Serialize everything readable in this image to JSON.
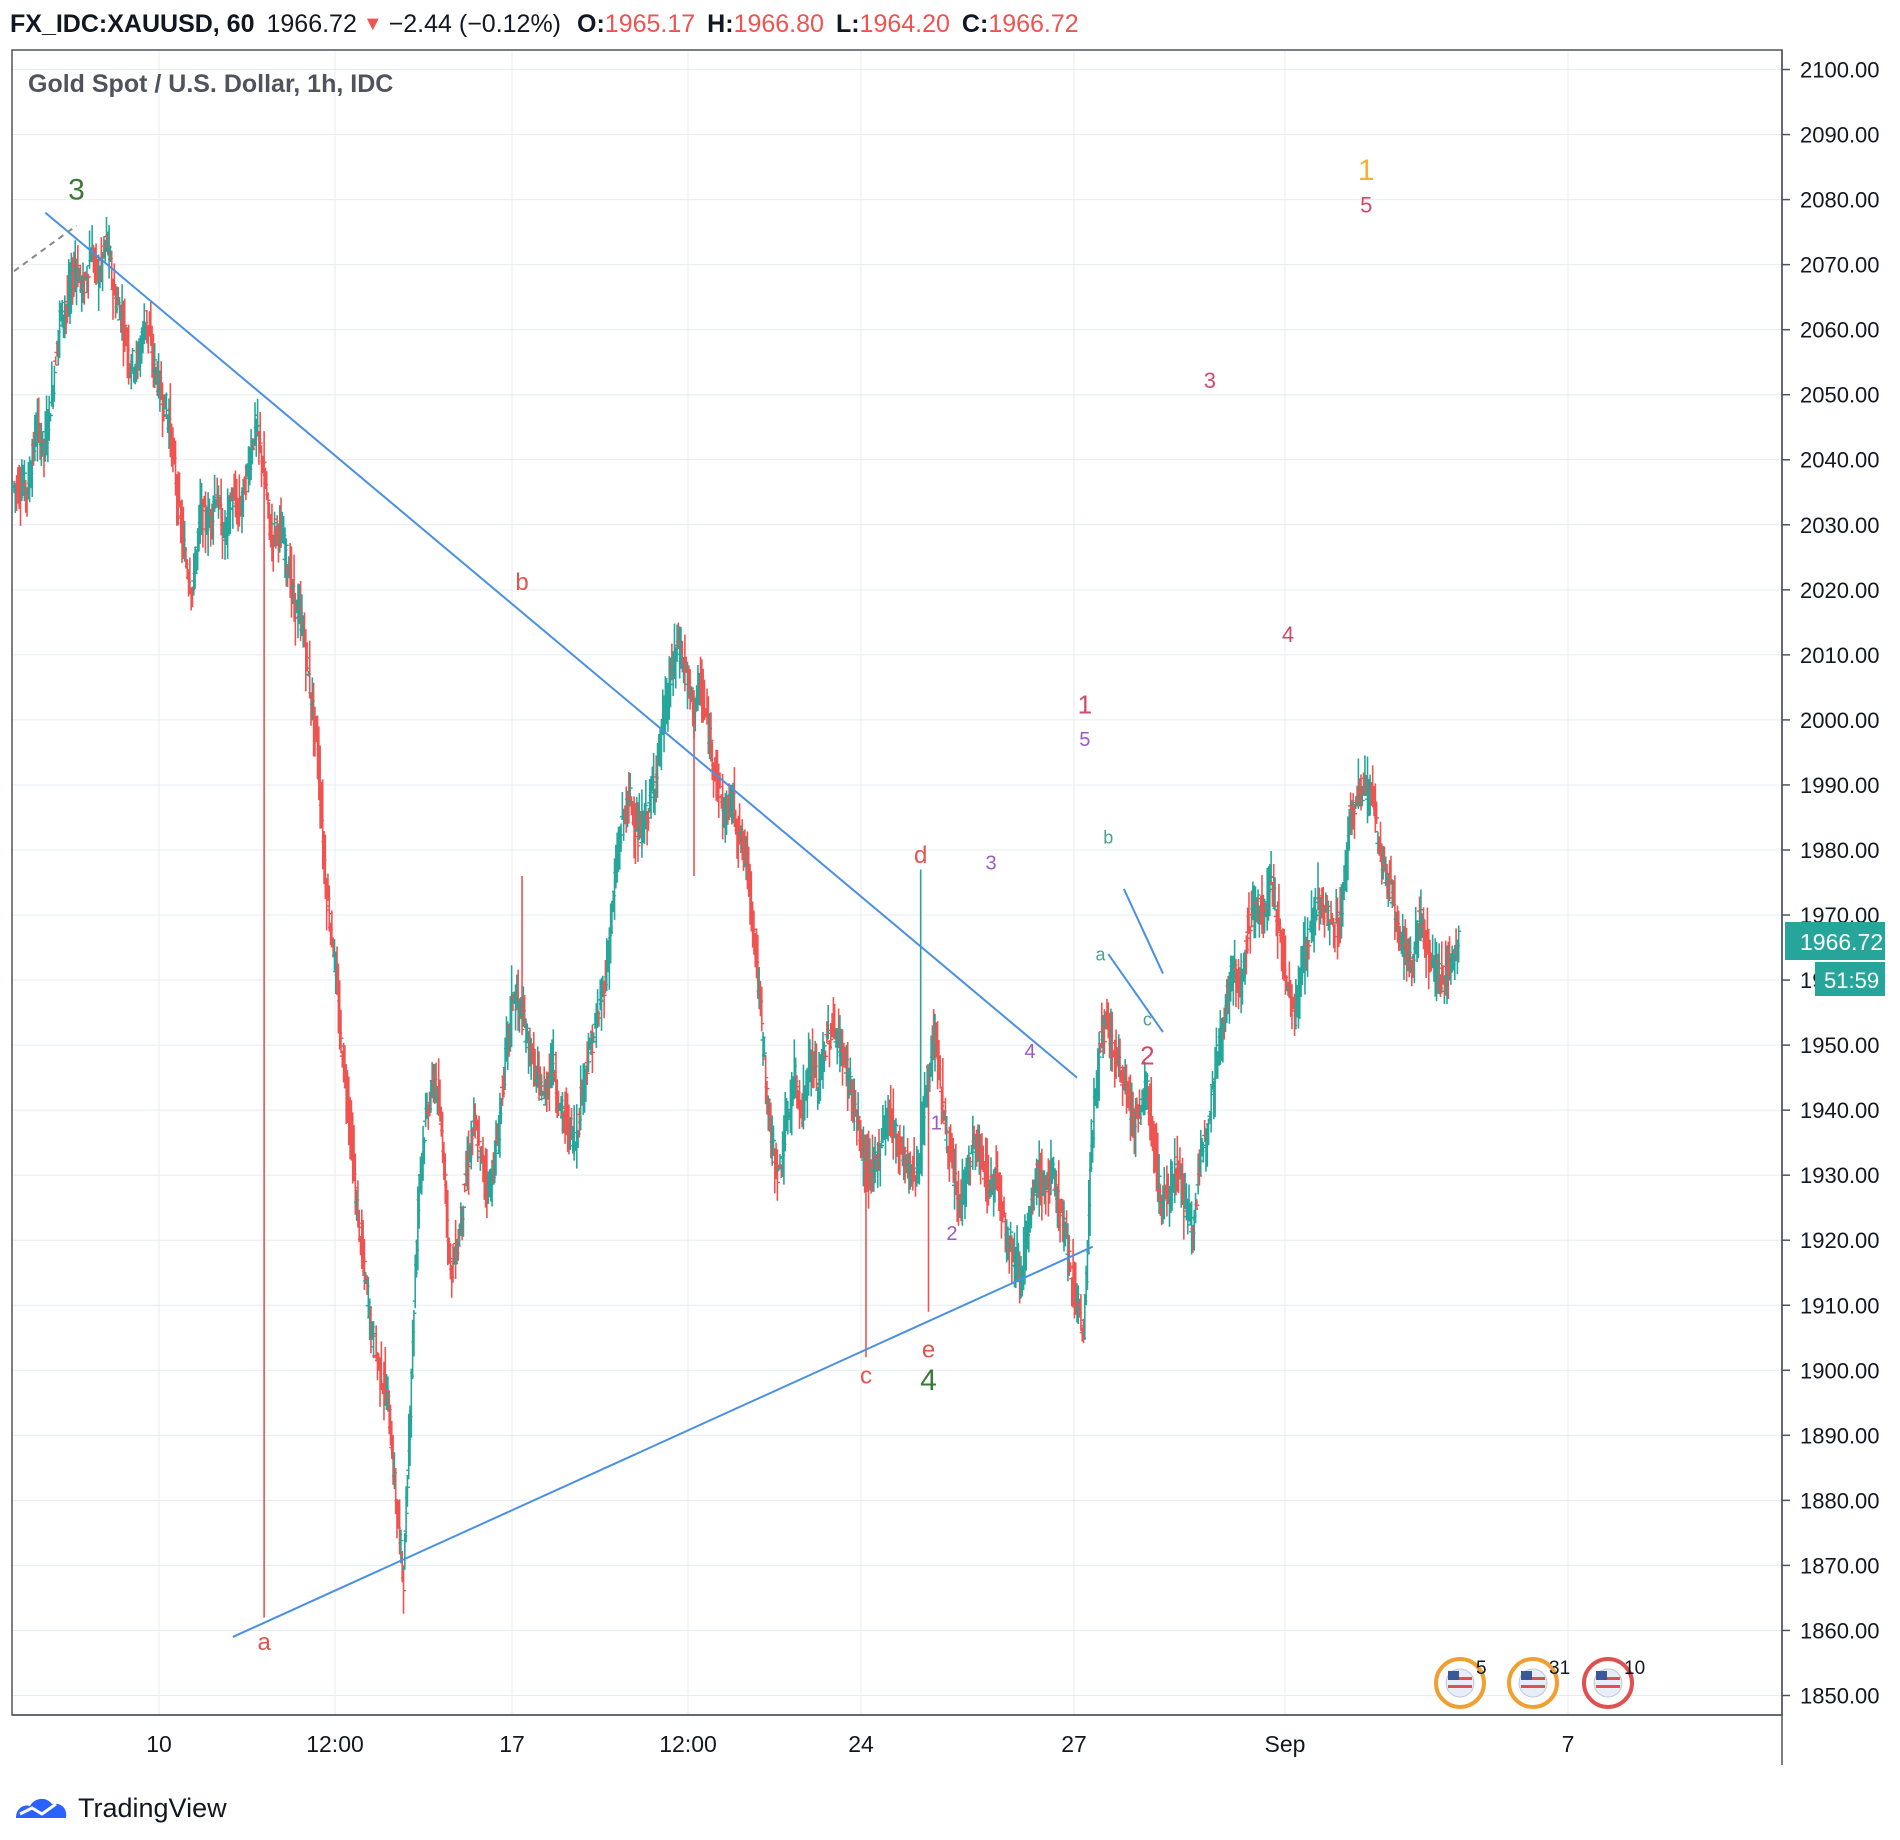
{
  "header": {
    "symbol": "FX_IDC:XAUUSD, 60",
    "price": "1966.72",
    "change": "−2.44 (−0.12%)",
    "open_label": "O:",
    "open": "1965.17",
    "high_label": "H:",
    "high": "1966.80",
    "low_label": "L:",
    "low": "1964.20",
    "close_label": "C:",
    "close": "1966.72"
  },
  "footer": {
    "brand": "TradingView"
  },
  "chart_data": {
    "type": "ohlc",
    "title": "Gold Spot / U.S. Dollar, 1h, IDC",
    "y_ticks": [
      2100,
      2090,
      2080,
      2070,
      2060,
      2050,
      2040,
      2030,
      2020,
      2010,
      2000,
      1990,
      1980,
      1970,
      1960,
      1950,
      1940,
      1930,
      1920,
      1910,
      1900,
      1890,
      1880,
      1870,
      1860,
      1850
    ],
    "y_tick_labels": [
      "2100.00",
      "2090.00",
      "2080.00",
      "2070.00",
      "2060.00",
      "2050.00",
      "2040.00",
      "2030.00",
      "2020.00",
      "2010.00",
      "2000.00",
      "1990.00",
      "1980.00",
      "1970.00",
      "1960.00",
      "1950.00",
      "1940.00",
      "1930.00",
      "1920.00",
      "1910.00",
      "1900.00",
      "1890.00",
      "1880.00",
      "1870.00",
      "1860.00",
      "1850.00"
    ],
    "ylim": [
      1847,
      2103
    ],
    "x_ticks": [
      "10",
      "12:00",
      "17",
      "12:00",
      "24",
      "27",
      "Sep",
      "7"
    ],
    "last_price": "1966.72",
    "countdown": "51:59",
    "price_path": [
      [
        0,
        2036
      ],
      [
        1,
        2036
      ],
      [
        2,
        2036
      ],
      [
        3,
        2045
      ],
      [
        4,
        2042
      ],
      [
        5,
        2050
      ],
      [
        6,
        2062
      ],
      [
        7,
        2064
      ],
      [
        8,
        2070
      ],
      [
        9,
        2066
      ],
      [
        10,
        2072
      ],
      [
        11,
        2068
      ],
      [
        12,
        2074
      ],
      [
        13,
        2065
      ],
      [
        14,
        2062
      ],
      [
        15,
        2055
      ],
      [
        16,
        2055
      ],
      [
        17,
        2062
      ],
      [
        18,
        2055
      ],
      [
        19,
        2050
      ],
      [
        20,
        2046
      ],
      [
        21,
        2035
      ],
      [
        22,
        2025
      ],
      [
        23,
        2020
      ],
      [
        24,
        2032
      ],
      [
        25,
        2030
      ],
      [
        26,
        2035
      ],
      [
        27,
        2028
      ],
      [
        28,
        2034
      ],
      [
        29,
        2032
      ],
      [
        30,
        2038
      ],
      [
        31,
        2045
      ],
      [
        32,
        2040
      ],
      [
        33,
        2028
      ],
      [
        34,
        2030
      ],
      [
        35,
        2025
      ],
      [
        36,
        2018
      ],
      [
        37,
        2015
      ],
      [
        38,
        2005
      ],
      [
        39,
        1995
      ],
      [
        40,
        1975
      ],
      [
        41,
        1965
      ],
      [
        42,
        1950
      ],
      [
        43,
        1940
      ],
      [
        44,
        1925
      ],
      [
        45,
        1915
      ],
      [
        46,
        1905
      ],
      [
        47,
        1900
      ],
      [
        48,
        1895
      ],
      [
        49,
        1880
      ],
      [
        50,
        1868
      ],
      [
        51,
        1900
      ],
      [
        52,
        1930
      ],
      [
        53,
        1940
      ],
      [
        54,
        1945
      ],
      [
        55,
        1935
      ],
      [
        56,
        1915
      ],
      [
        57,
        1920
      ],
      [
        58,
        1930
      ],
      [
        59,
        1938
      ],
      [
        60,
        1932
      ],
      [
        61,
        1928
      ],
      [
        62,
        1935
      ],
      [
        63,
        1948
      ],
      [
        64,
        1958
      ],
      [
        65,
        1955
      ],
      [
        66,
        1950
      ],
      [
        67,
        1945
      ],
      [
        68,
        1942
      ],
      [
        69,
        1948
      ],
      [
        70,
        1940
      ],
      [
        71,
        1938
      ],
      [
        72,
        1935
      ],
      [
        73,
        1945
      ],
      [
        74,
        1950
      ],
      [
        75,
        1955
      ],
      [
        76,
        1962
      ],
      [
        77,
        1975
      ],
      [
        78,
        1985
      ],
      [
        79,
        1988
      ],
      [
        80,
        1982
      ],
      [
        81,
        1985
      ],
      [
        82,
        1990
      ],
      [
        83,
        1998
      ],
      [
        84,
        2005
      ],
      [
        85,
        2012
      ],
      [
        86,
        2008
      ],
      [
        87,
        2002
      ],
      [
        88,
        2005
      ],
      [
        89,
        1998
      ],
      [
        90,
        1992
      ],
      [
        91,
        1985
      ],
      [
        92,
        1988
      ],
      [
        93,
        1982
      ],
      [
        94,
        1978
      ],
      [
        95,
        1965
      ],
      [
        96,
        1950
      ],
      [
        97,
        1935
      ],
      [
        98,
        1930
      ],
      [
        99,
        1938
      ],
      [
        100,
        1945
      ],
      [
        101,
        1940
      ],
      [
        102,
        1948
      ],
      [
        103,
        1944
      ],
      [
        104,
        1950
      ],
      [
        105,
        1953
      ],
      [
        106,
        1949
      ],
      [
        107,
        1945
      ],
      [
        108,
        1938
      ],
      [
        109,
        1932
      ],
      [
        110,
        1930
      ],
      [
        111,
        1935
      ],
      [
        112,
        1940
      ],
      [
        113,
        1936
      ],
      [
        114,
        1933
      ],
      [
        115,
        1930
      ],
      [
        116,
        1932
      ],
      [
        117,
        1945
      ],
      [
        118,
        1952
      ],
      [
        119,
        1940
      ],
      [
        120,
        1932
      ],
      [
        121,
        1925
      ],
      [
        122,
        1930
      ],
      [
        123,
        1935
      ],
      [
        124,
        1932
      ],
      [
        125,
        1928
      ],
      [
        126,
        1930
      ],
      [
        127,
        1922
      ],
      [
        128,
        1918
      ],
      [
        129,
        1915
      ],
      [
        130,
        1922
      ],
      [
        131,
        1930
      ],
      [
        132,
        1928
      ],
      [
        133,
        1930
      ],
      [
        134,
        1925
      ],
      [
        135,
        1918
      ],
      [
        136,
        1912
      ],
      [
        137,
        1905
      ],
      [
        138,
        1935
      ],
      [
        139,
        1950
      ],
      [
        140,
        1953
      ],
      [
        141,
        1948
      ],
      [
        142,
        1945
      ],
      [
        143,
        1940
      ],
      [
        144,
        1938
      ],
      [
        145,
        1944
      ],
      [
        146,
        1935
      ],
      [
        147,
        1925
      ],
      [
        148,
        1928
      ],
      [
        149,
        1932
      ],
      [
        150,
        1925
      ],
      [
        151,
        1922
      ],
      [
        152,
        1932
      ],
      [
        153,
        1940
      ],
      [
        154,
        1948
      ],
      [
        155,
        1955
      ],
      [
        156,
        1962
      ],
      [
        157,
        1958
      ],
      [
        158,
        1968
      ],
      [
        159,
        1972
      ],
      [
        160,
        1970
      ],
      [
        161,
        1975
      ],
      [
        162,
        1968
      ],
      [
        163,
        1960
      ],
      [
        164,
        1955
      ],
      [
        165,
        1962
      ],
      [
        166,
        1968
      ],
      [
        167,
        1972
      ],
      [
        168,
        1970
      ],
      [
        169,
        1968
      ],
      [
        170,
        1970
      ],
      [
        171,
        1985
      ],
      [
        172,
        1988
      ],
      [
        173,
        1990
      ],
      [
        174,
        1988
      ],
      [
        175,
        1978
      ],
      [
        176,
        1975
      ],
      [
        177,
        1970
      ],
      [
        178,
        1965
      ],
      [
        179,
        1962
      ],
      [
        180,
        1970
      ],
      [
        181,
        1965
      ],
      [
        182,
        1962
      ],
      [
        183,
        1960
      ],
      [
        184,
        1962
      ],
      [
        185,
        1967
      ]
    ],
    "trendlines": [
      {
        "from": [
          4,
          2078
        ],
        "to": [
          136,
          1945
        ]
      },
      {
        "from": [
          28,
          1859
        ],
        "to": [
          138,
          1919
        ]
      },
      {
        "from": [
          140,
          1964
        ],
        "to": [
          147,
          1952
        ]
      },
      {
        "from": [
          142,
          1974
        ],
        "to": [
          147,
          1961
        ]
      },
      {
        "from": [
          0,
          2069
        ],
        "to": [
          8,
          2076
        ],
        "dashed": true
      }
    ],
    "wave_labels": [
      {
        "text": "3",
        "color": "#3a7a36",
        "bar": 8,
        "price": 2080,
        "size": 30
      },
      {
        "text": "a",
        "color": "#e5534b",
        "bar": 32,
        "price": 1857,
        "size": 24
      },
      {
        "text": "b",
        "color": "#e5534b",
        "bar": 65,
        "price": 2020,
        "size": 24
      },
      {
        "text": "c",
        "color": "#e5534b",
        "bar": 109,
        "price": 1898,
        "size": 24
      },
      {
        "text": "d",
        "color": "#e5534b",
        "bar": 116,
        "price": 1978,
        "size": 24
      },
      {
        "text": "e",
        "color": "#e5534b",
        "bar": 117,
        "price": 1902,
        "size": 24
      },
      {
        "text": "4",
        "color": "#3a7a36",
        "bar": 117,
        "price": 1897,
        "size": 30
      },
      {
        "text": "1",
        "color": "#9b59c4",
        "bar": 118,
        "price": 1937,
        "size": 20
      },
      {
        "text": "2",
        "color": "#9b59c4",
        "bar": 120,
        "price": 1920,
        "size": 20
      },
      {
        "text": "3",
        "color": "#9b59c4",
        "bar": 125,
        "price": 1977,
        "size": 20
      },
      {
        "text": "4",
        "color": "#9b59c4",
        "bar": 130,
        "price": 1948,
        "size": 20
      },
      {
        "text": "1",
        "color": "#d2496a",
        "bar": 137,
        "price": 2001,
        "size": 26
      },
      {
        "text": "5",
        "color": "#9b59c4",
        "bar": 137,
        "price": 1996,
        "size": 20
      },
      {
        "text": "b",
        "color": "#4aa28f",
        "bar": 140,
        "price": 1981,
        "size": 18
      },
      {
        "text": "a",
        "color": "#4aa28f",
        "bar": 139,
        "price": 1963,
        "size": 18
      },
      {
        "text": "c",
        "color": "#4aa28f",
        "bar": 145,
        "price": 1953,
        "size": 18
      },
      {
        "text": "2",
        "color": "#d2496a",
        "bar": 145,
        "price": 1947,
        "size": 26
      },
      {
        "text": "3",
        "color": "#d2496a",
        "bar": 153,
        "price": 2051,
        "size": 22
      },
      {
        "text": "4",
        "color": "#d2496a",
        "bar": 163,
        "price": 2012,
        "size": 22
      },
      {
        "text": "1",
        "color": "#f3b23a",
        "bar": 173,
        "price": 2083,
        "size": 30
      },
      {
        "text": "5",
        "color": "#d2496a",
        "bar": 173,
        "price": 2078,
        "size": 22
      }
    ],
    "events": [
      {
        "label": "5",
        "color": "#f0a030"
      },
      {
        "label": "31",
        "color": "#f0a030"
      },
      {
        "label": "10",
        "color": "#e05050"
      }
    ]
  }
}
